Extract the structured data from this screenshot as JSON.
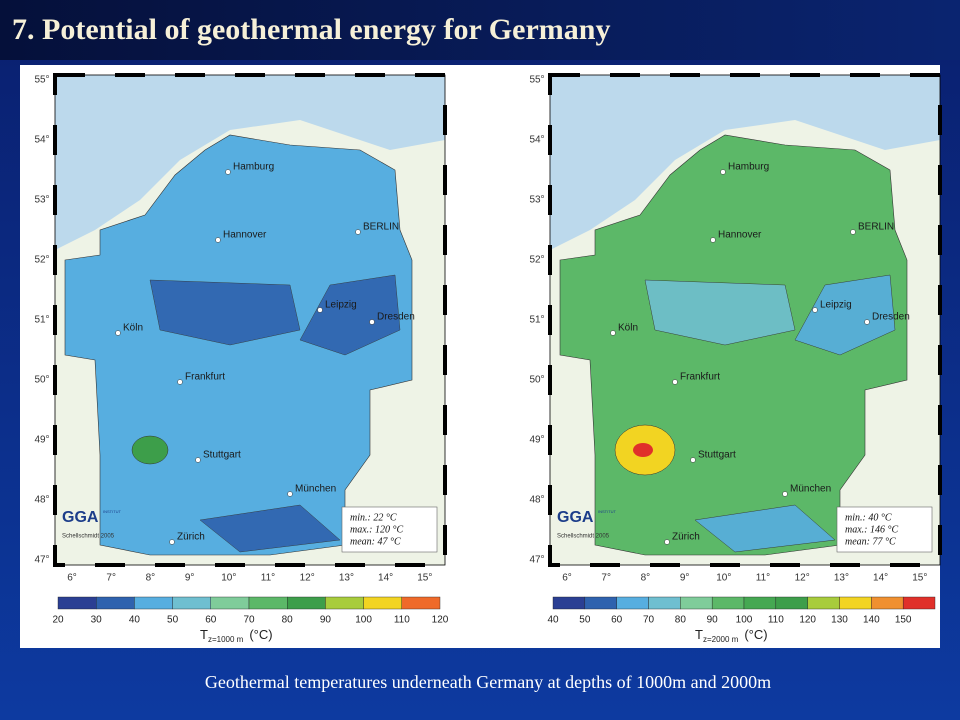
{
  "title": "7. Potential of geothermal energy for Germany",
  "caption": "Geothermal temperatures underneath Germany at depths of 1000m and 2000m",
  "maps": [
    {
      "latitude_labels": [
        "55°",
        "54°",
        "53°",
        "52°",
        "51°",
        "50°",
        "49°",
        "48°",
        "47°"
      ],
      "longitude_labels": [
        "6°",
        "7°",
        "8°",
        "9°",
        "10°",
        "11°",
        "12°",
        "13°",
        "14°",
        "15°"
      ],
      "cities": [
        "Hamburg",
        "Hannover",
        "BERLIN",
        "Leipzig",
        "Köln",
        "Dresden",
        "Frankfurt",
        "Stuttgart",
        "München",
        "Zürich"
      ],
      "logo": "GGA",
      "logo_sub": "INSTITUT",
      "credit": "Schellschmidt 2005",
      "stats": [
        "min.: 22 °C",
        "max.: 120 °C",
        "mean: 47 °C"
      ],
      "colorbar": {
        "ticks": [
          "20",
          "30",
          "40",
          "50",
          "60",
          "70",
          "80",
          "90",
          "100",
          "110",
          "120"
        ],
        "colors": [
          "#2b3f93",
          "#2f62ae",
          "#57aee0",
          "#6fbfd0",
          "#7fcc9a",
          "#5cb868",
          "#3d9e4a",
          "#a8cc3c",
          "#f2d422",
          "#ef6a2a"
        ],
        "symbol": "T",
        "subscript": "z=1000 m",
        "unit": "(°C)"
      }
    },
    {
      "latitude_labels": [
        "55°",
        "54°",
        "53°",
        "52°",
        "51°",
        "50°",
        "49°",
        "48°",
        "47°"
      ],
      "longitude_labels": [
        "6°",
        "7°",
        "8°",
        "9°",
        "10°",
        "11°",
        "12°",
        "13°",
        "14°",
        "15°"
      ],
      "cities": [
        "Hamburg",
        "Hannover",
        "BERLIN",
        "Leipzig",
        "Köln",
        "Dresden",
        "Frankfurt",
        "Stuttgart",
        "München",
        "Zürich"
      ],
      "logo": "GGA",
      "logo_sub": "INSTITUT",
      "credit": "Schellschmidt 2005",
      "stats": [
        "min.: 40 °C",
        "max.: 146 °C",
        "mean: 77 °C"
      ],
      "colorbar": {
        "ticks": [
          "40",
          "50",
          "60",
          "70",
          "80",
          "90",
          "100",
          "110",
          "120",
          "130",
          "140",
          "150"
        ],
        "colors": [
          "#2b3f93",
          "#2f62ae",
          "#57aee0",
          "#6fbfd0",
          "#7fcc9a",
          "#5cb868",
          "#45a852",
          "#3d9e4a",
          "#a8cc3c",
          "#f2d422",
          "#f09030",
          "#e0302a"
        ],
        "symbol": "T",
        "subscript": "z=2000 m",
        "unit": "(°C)"
      }
    }
  ]
}
